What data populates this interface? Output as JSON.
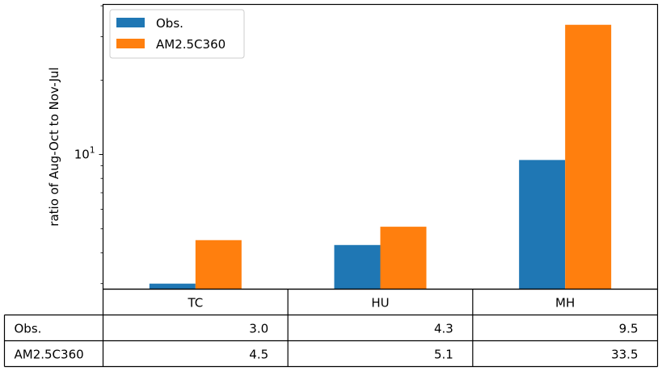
{
  "chart_data": {
    "type": "bar",
    "yscale": "log",
    "ylabel": "ratio of Aug-Oct to Nov-Jul",
    "ylim": [
      2.85,
      40.5
    ],
    "y_ticks": [
      {
        "value": 10,
        "base": "10",
        "exp": "1"
      }
    ],
    "y_minor_ticks": [
      3,
      4,
      5,
      6,
      7,
      8,
      9,
      20,
      30,
      40
    ],
    "categories": [
      "TC",
      "HU",
      "MH"
    ],
    "series": [
      {
        "name": "Obs.",
        "color": "#1f77b4",
        "values": [
          3.0,
          4.3,
          9.5
        ]
      },
      {
        "name": "AM2.5C360",
        "color": "#ff7f0e",
        "values": [
          4.5,
          5.1,
          33.5
        ]
      }
    ],
    "legend_position": "top-left",
    "grid": false,
    "table": {
      "row_labels": [
        "Obs.",
        "AM2.5C360"
      ],
      "rows": [
        [
          "3.0",
          "4.3",
          "9.5"
        ],
        [
          "4.5",
          "5.1",
          "33.5"
        ]
      ]
    }
  }
}
